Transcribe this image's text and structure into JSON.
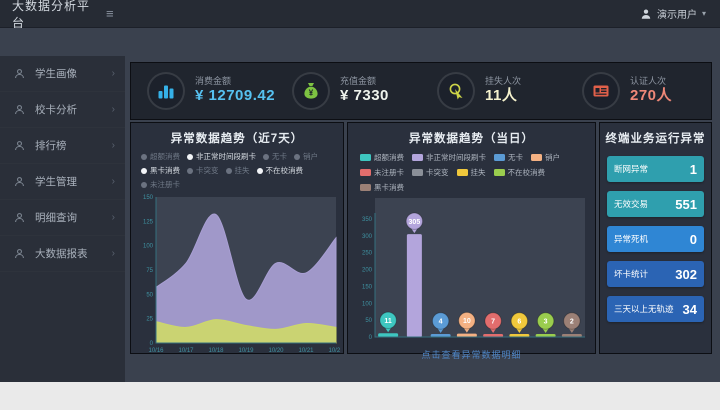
{
  "topbar": {
    "title": "大数据分析平台",
    "menu_icon": "≡",
    "user_label": "演示用户",
    "caret": "▾"
  },
  "sidebar": {
    "chevron": "›",
    "items": [
      {
        "label": "学生画像"
      },
      {
        "label": "校卡分析"
      },
      {
        "label": "排行榜"
      },
      {
        "label": "学生管理"
      },
      {
        "label": "明细查询"
      },
      {
        "label": "大数据报表"
      }
    ]
  },
  "kpis": [
    {
      "label": "消费金额",
      "value": "¥ 12709.42",
      "color": "#35b1e8",
      "value_color": "#56c1f0"
    },
    {
      "label": "充值金额",
      "value": "¥ 7330",
      "color": "#7dc242",
      "value_color": "#eef3ec"
    },
    {
      "label": "挂失人次",
      "value": "11人",
      "color": "#cdd448",
      "value_color": "#f5f2cd"
    },
    {
      "label": "认证人次",
      "value": "270人",
      "color": "#e0604a",
      "value_color": "#f08878"
    }
  ],
  "panels": {
    "week": {
      "title": "异常数据趋势（近7天）"
    },
    "today": {
      "title": "异常数据趋势（当日）",
      "footer_link": "点击查看异常数据明细"
    },
    "terminal": {
      "title": "终端业务运行异常",
      "stats": [
        {
          "label": "断网异常",
          "value": "1",
          "color": "#2f9fae"
        },
        {
          "label": "无效交易",
          "value": "551",
          "color": "#2f9fae"
        },
        {
          "label": "异常死机",
          "value": "0",
          "color": "#2f86d4"
        },
        {
          "label": "坏卡统计",
          "value": "302",
          "color": "#2b64b4"
        },
        {
          "label": "三天以上无轨迹",
          "value": "34",
          "color": "#2b64b4"
        }
      ]
    }
  },
  "chart_data": [
    {
      "id": "week_area",
      "type": "area",
      "title": "异常数据趋势（近7天）",
      "x": [
        "10/16",
        "10/17",
        "10/18",
        "10/19",
        "10/20",
        "10/21",
        "10/22"
      ],
      "series": [
        {
          "name": "非正常时间段刷卡",
          "color": "#a99fd4",
          "values": [
            57,
            82,
            132,
            45,
            82,
            72,
            108
          ]
        },
        {
          "name": "不在校消费",
          "color": "#cdd86a",
          "values": [
            22,
            16,
            24,
            18,
            14,
            20,
            16
          ]
        }
      ],
      "ylim": [
        0,
        150
      ],
      "yticks": [
        0,
        25,
        50,
        75,
        100,
        125,
        150
      ],
      "legend_position": "top",
      "grid": false,
      "legend": [
        {
          "label": "超额消费",
          "active": false
        },
        {
          "label": "非正常时间段刷卡",
          "active": true
        },
        {
          "label": "无卡",
          "active": false
        },
        {
          "label": "销户",
          "active": false
        },
        {
          "label": "黑卡消费",
          "active": true
        },
        {
          "label": "卡突变",
          "active": false
        },
        {
          "label": "挂失",
          "active": false
        },
        {
          "label": "不在校消费",
          "active": true
        },
        {
          "label": "未注册卡",
          "active": false
        }
      ]
    },
    {
      "id": "today_bar",
      "type": "bar",
      "title": "异常数据趋势（当日）",
      "categories": [
        "超额消费",
        "非正常时间段刷卡",
        "无卡",
        "销户",
        "未注册卡",
        "挂失",
        "不在校消费",
        "黑卡消费"
      ],
      "values": [
        11,
        305,
        4,
        10,
        7,
        6,
        3,
        2
      ],
      "colors": [
        "#3ec6c0",
        "#b3a5dc",
        "#5b9bd5",
        "#f4b183",
        "#e26d6d",
        "#f0c83c",
        "#9acd4e",
        "#9b8076"
      ],
      "ylim": [
        0,
        350
      ],
      "yticks": [
        0,
        50,
        100,
        150,
        200,
        250,
        300,
        350
      ],
      "legend_position": "top",
      "grid": false,
      "legend": [
        {
          "label": "超额消费",
          "color": "#3ec6c0"
        },
        {
          "label": "非正常时间段刷卡",
          "color": "#b3a5dc"
        },
        {
          "label": "无卡",
          "color": "#5b9bd5"
        },
        {
          "label": "销户",
          "color": "#f4b183"
        },
        {
          "label": "未注册卡",
          "color": "#e26d6d"
        },
        {
          "label": "卡突变",
          "color": "#8a8f98"
        },
        {
          "label": "挂失",
          "color": "#f0c83c"
        },
        {
          "label": "不在校消费",
          "color": "#9acd4e"
        },
        {
          "label": "黑卡消费",
          "color": "#9b8076"
        }
      ]
    }
  ]
}
